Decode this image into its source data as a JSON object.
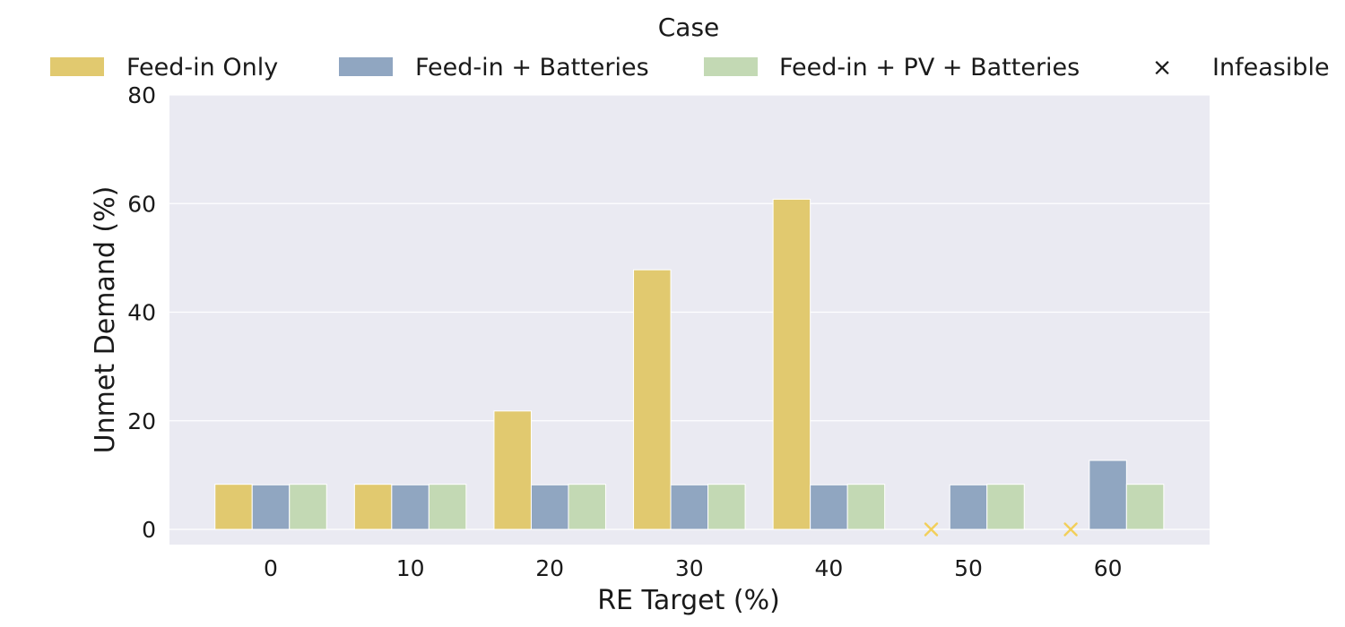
{
  "chart_data": {
    "type": "bar",
    "xlabel": "RE Target (%)",
    "ylabel": "Unmet Demand (%)",
    "categories": [
      "0",
      "10",
      "20",
      "30",
      "40",
      "50",
      "60"
    ],
    "ylim": [
      -2.8,
      80
    ],
    "yticks": [
      0,
      20,
      40,
      60,
      80
    ],
    "grid": true,
    "legend": {
      "title": "Case",
      "placement": "top",
      "entries": [
        "Feed-in Only",
        "Feed-in + Batteries",
        "Feed-in + PV + Batteries",
        "Infeasible"
      ]
    },
    "series": [
      {
        "name": "Feed-in Only",
        "color": "#e1c96f",
        "values": [
          8.3,
          8.3,
          21.8,
          47.8,
          60.8,
          null,
          null
        ]
      },
      {
        "name": "Feed-in + Batteries",
        "color": "#90a6c1",
        "values": [
          8.2,
          8.2,
          8.2,
          8.2,
          8.2,
          8.2,
          12.7
        ]
      },
      {
        "name": "Feed-in + PV + Batteries",
        "color": "#c3d9b4",
        "values": [
          8.3,
          8.3,
          8.3,
          8.3,
          8.3,
          8.3,
          8.3
        ]
      }
    ],
    "infeasible": [
      {
        "series": "Feed-in Only",
        "category": "50",
        "value": 0,
        "color": "#f2cf59"
      },
      {
        "series": "Feed-in Only",
        "category": "60",
        "value": 0,
        "color": "#f2cf59"
      }
    ],
    "infeasible_marker": "×"
  }
}
